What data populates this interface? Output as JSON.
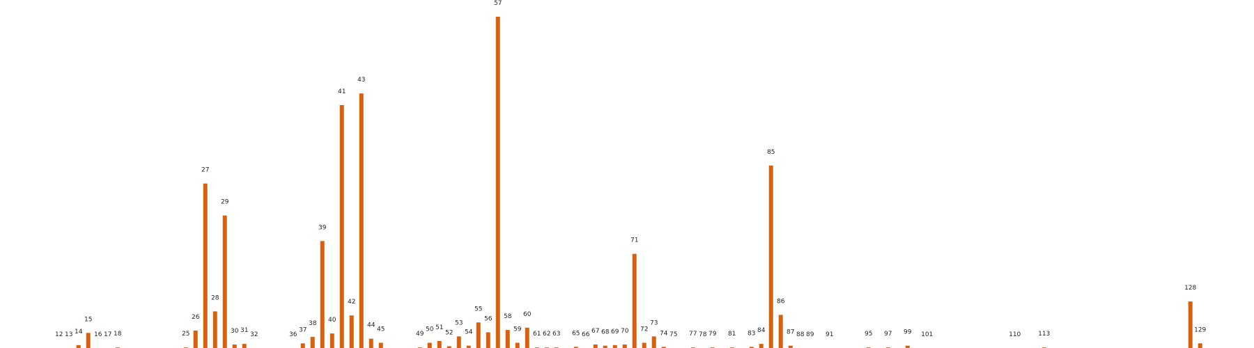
{
  "chart_data": {
    "type": "bar",
    "title": "",
    "xlabel": "",
    "ylabel": "",
    "grid": false,
    "legend": "none",
    "bar_color": "#d4610f",
    "ylim": [
      0,
      57
    ],
    "categories": [
      "12",
      "13",
      "14",
      "15",
      "16",
      "17",
      "18",
      "25",
      "26",
      "27",
      "28",
      "29",
      "30",
      "31",
      "32",
      "36",
      "37",
      "38",
      "39",
      "40",
      "41",
      "42",
      "43",
      "44",
      "45",
      "49",
      "50",
      "51",
      "52",
      "53",
      "54",
      "55",
      "56",
      "57",
      "58",
      "59",
      "60",
      "61",
      "62",
      "63",
      "65",
      "66",
      "67",
      "68",
      "69",
      "70",
      "71",
      "72",
      "73",
      "74",
      "75",
      "77",
      "78",
      "79",
      "81",
      "83",
      "84",
      "85",
      "86",
      "87",
      "88",
      "89",
      "91",
      "95",
      "97",
      "99",
      "101",
      "110",
      "113",
      "128",
      "129"
    ],
    "values": [
      0.0,
      0.0,
      0.5,
      2.6,
      0.0,
      0.0,
      0.1,
      0.1,
      3.0,
      28.3,
      6.3,
      22.8,
      0.6,
      0.7,
      0.0,
      0.0,
      0.8,
      1.9,
      18.4,
      2.5,
      41.8,
      5.6,
      43.8,
      1.6,
      0.9,
      0.1,
      0.9,
      1.2,
      0.3,
      2.0,
      0.4,
      4.4,
      2.7,
      57.0,
      3.1,
      0.9,
      3.5,
      0.1,
      0.1,
      0.1,
      0.2,
      0.0,
      0.6,
      0.4,
      0.5,
      0.6,
      16.2,
      0.9,
      2.0,
      0.2,
      0.0,
      0.1,
      0.0,
      0.1,
      0.1,
      0.2,
      0.7,
      31.4,
      5.7,
      0.4,
      0.0,
      0.0,
      0.0,
      0.1,
      0.1,
      0.4,
      0.0,
      0.0,
      0.1,
      8.0,
      0.8
    ]
  }
}
